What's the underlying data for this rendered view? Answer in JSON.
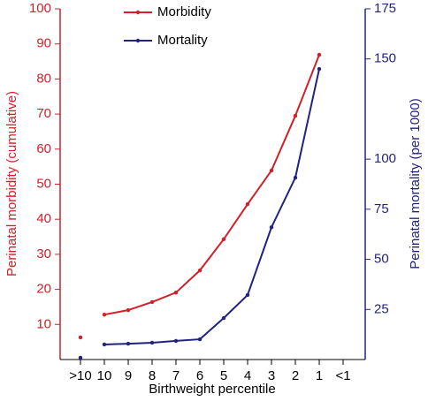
{
  "chart_data": {
    "type": "line",
    "xlabel": "Birthweight percentile",
    "ylabel": "Perinatal morbidity (cumulative)",
    "y2label": "Perinatal mortality (per 1000)",
    "categories": [
      ">10",
      "10",
      "9",
      "8",
      "7",
      "6",
      "5",
      "4",
      "3",
      "2",
      "1",
      "<1"
    ],
    "series": [
      {
        "name": "Morbidity",
        "color": "#d0202a",
        "values": [
          6.3,
          12.8,
          14.1,
          16.4,
          19.1,
          25.4,
          34.3,
          44.3,
          53.9,
          69.5,
          86.9,
          null
        ]
      },
      {
        "name": "Mortality",
        "color": "#23237e",
        "axis": "y2",
        "values": [
          0.9,
          7.5,
          7.9,
          8.4,
          9.3,
          10.1,
          20.7,
          32.2,
          66,
          90.8,
          145,
          null
        ]
      }
    ],
    "ylim": [
      0,
      100
    ],
    "yticks": [
      10,
      20,
      30,
      40,
      50,
      60,
      70,
      80,
      90,
      100
    ],
    "y2lim": [
      0,
      175
    ],
    "y2ticks": [
      25,
      50,
      75,
      100,
      150,
      175
    ]
  }
}
